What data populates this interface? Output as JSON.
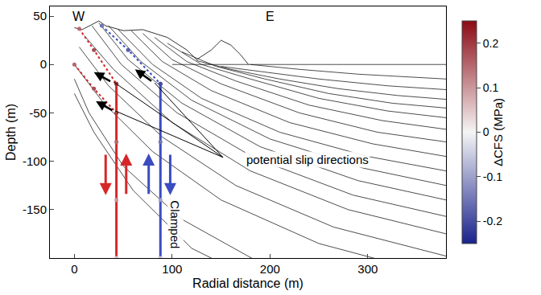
{
  "chart_data": {
    "type": "line",
    "xlabel": "Radial distance (m)",
    "ylabel": "Depth (m)",
    "xlim": [
      -25,
      380
    ],
    "xticks": [
      0,
      100,
      200,
      300
    ],
    "ylim": [
      -200,
      60
    ],
    "yticks": [
      -150,
      -100,
      -50,
      0,
      50
    ],
    "grid": false,
    "annotations": [
      "W",
      "E",
      "potential slip directions",
      "Clamped"
    ],
    "colorbar": {
      "title": "ΔCFS (MPa)",
      "range": [
        -0.25,
        0.25
      ],
      "ticks": [
        -0.2,
        -0.1,
        0,
        0.1,
        0.2
      ]
    },
    "topography": {
      "x": [
        0,
        8,
        25,
        32,
        50,
        70,
        95,
        115,
        125,
        140,
        150,
        160,
        170,
        178
      ],
      "y": [
        38,
        36,
        45,
        40,
        35,
        36,
        28,
        15,
        5,
        15,
        25,
        20,
        10,
        0
      ]
    },
    "lines": [
      {
        "x": [
          100,
          380
        ],
        "y": [
          0,
          0
        ]
      },
      {
        "x": [
          0,
          20,
          60,
          120,
          200
        ],
        "y": [
          -30,
          -70,
          -130,
          -190,
          -230
        ]
      },
      {
        "x": [
          0,
          15,
          50,
          110,
          190,
          300
        ],
        "y": [
          -15,
          -50,
          -105,
          -160,
          -205,
          -240
        ]
      },
      {
        "x": [
          0,
          30,
          80,
          150,
          250,
          380
        ],
        "y": [
          0,
          -40,
          -90,
          -140,
          -185,
          -220
        ]
      },
      {
        "x": [
          5,
          35,
          90,
          165,
          265,
          380
        ],
        "y": [
          18,
          -22,
          -75,
          -125,
          -168,
          -198
        ]
      },
      {
        "x": [
          10,
          40,
          100,
          180,
          280,
          380
        ],
        "y": [
          30,
          -5,
          -60,
          -110,
          -150,
          -175
        ]
      },
      {
        "x": [
          18,
          48,
          105,
          185,
          285,
          380
        ],
        "y": [
          40,
          0,
          -50,
          -97,
          -135,
          -157
        ]
      },
      {
        "x": [
          25,
          55,
          110,
          190,
          290,
          380
        ],
        "y": [
          43,
          5,
          -40,
          -85,
          -120,
          -140
        ]
      },
      {
        "x": [
          35,
          68,
          120,
          200,
          295,
          380
        ],
        "y": [
          40,
          3,
          -37,
          -77,
          -107,
          -125
        ]
      },
      {
        "x": [
          45,
          80,
          130,
          210,
          300,
          380
        ],
        "y": [
          36,
          0,
          -35,
          -70,
          -95,
          -110
        ]
      },
      {
        "x": [
          58,
          90,
          140,
          220,
          305,
          380
        ],
        "y": [
          35,
          3,
          -27,
          -60,
          -82,
          -95
        ]
      },
      {
        "x": [
          70,
          100,
          150,
          230,
          310,
          380
        ],
        "y": [
          32,
          5,
          -20,
          -50,
          -70,
          -80
        ]
      },
      {
        "x": [
          82,
          115,
          165,
          240,
          315,
          380
        ],
        "y": [
          28,
          3,
          -17,
          -42,
          -58,
          -67
        ]
      },
      {
        "x": [
          95,
          130,
          180,
          250,
          320,
          380
        ],
        "y": [
          22,
          0,
          -15,
          -35,
          -48,
          -55
        ]
      },
      {
        "x": [
          110,
          145,
          195,
          260,
          325,
          380
        ],
        "y": [
          13,
          -2,
          -15,
          -30,
          -40,
          -45
        ]
      },
      {
        "x": [
          125,
          160,
          210,
          270,
          330,
          380
        ],
        "y": [
          4,
          -5,
          -15,
          -25,
          -32,
          -36
        ]
      },
      {
        "x": [
          150,
          195,
          250,
          320,
          380
        ],
        "y": [
          -2,
          -8,
          -15,
          -22,
          -26
        ]
      },
      {
        "x": [
          180,
          230,
          290,
          380
        ],
        "y": [
          0,
          -5,
          -10,
          -15
        ]
      }
    ],
    "faults": [
      {
        "color": "#d62728",
        "line_style": "solid",
        "x": [
          43,
          43,
          43,
          43
        ],
        "y": [
          -20,
          -80,
          -140,
          -200
        ],
        "cfs": [
          0.2,
          0.15,
          0.1,
          0.05
        ]
      },
      {
        "color": "#3b4cc0",
        "line_style": "solid",
        "x": [
          88,
          88,
          88,
          88
        ],
        "y": [
          -20,
          -80,
          -140,
          -200
        ],
        "cfs": [
          -0.2,
          -0.15,
          -0.1,
          -0.05
        ]
      },
      {
        "color": "#d62728",
        "line_style": "dot",
        "x": [
          5,
          20,
          43
        ],
        "y": [
          37,
          15,
          -20
        ],
        "cfs": [
          0.15,
          0.18,
          0.2
        ]
      },
      {
        "color": "#d62728",
        "line_style": "dot",
        "x": [
          0,
          20,
          43
        ],
        "y": [
          0,
          -25,
          -50
        ],
        "cfs": [
          0.15,
          0.18,
          0.2
        ]
      },
      {
        "color": "#3b4cc0",
        "line_style": "dot",
        "x": [
          28,
          55,
          88
        ],
        "y": [
          40,
          15,
          -20
        ],
        "cfs": [
          -0.15,
          -0.18,
          -0.2
        ]
      }
    ]
  }
}
